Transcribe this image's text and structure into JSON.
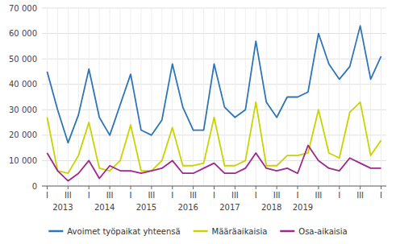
{
  "chart_data": {
    "type": "line",
    "categories": [
      "I",
      null,
      "III",
      null,
      "I",
      null,
      "III",
      null,
      "I",
      null,
      "III",
      null,
      "I",
      null,
      "III",
      null,
      "I",
      null,
      "III",
      null,
      "I",
      null,
      "III",
      null,
      "I",
      null,
      "III",
      null,
      "I",
      null,
      "III",
      null,
      "I"
    ],
    "series": [
      {
        "name": "Avoimet työpaikat yhteensä",
        "color": "#2e75b6",
        "values": [
          45000,
          30000,
          17000,
          28000,
          46000,
          27000,
          20000,
          32000,
          44000,
          22000,
          20000,
          26000,
          48000,
          31000,
          22000,
          22000,
          48000,
          31000,
          27000,
          30000,
          57000,
          33000,
          27000,
          35000,
          35000,
          37000,
          60000,
          48000,
          42000,
          47000,
          63000,
          42000,
          51000
        ]
      },
      {
        "name": "Määräaikaisia",
        "color": "#c8d400",
        "values": [
          27000,
          6000,
          5000,
          12000,
          25000,
          7000,
          6000,
          10000,
          24000,
          6000,
          6000,
          10000,
          23000,
          8000,
          8000,
          9000,
          27000,
          8000,
          8000,
          10000,
          33000,
          8000,
          8000,
          12000,
          12000,
          13000,
          30000,
          13000,
          11000,
          29000,
          33000,
          12000,
          18000
        ]
      },
      {
        "name": "Osa-aikaisia",
        "color": "#9e288e",
        "values": [
          13000,
          6000,
          2000,
          5000,
          10000,
          3000,
          8000,
          6000,
          6000,
          5000,
          6000,
          7000,
          10000,
          5000,
          5000,
          7000,
          9000,
          5000,
          5000,
          7000,
          13000,
          7000,
          6000,
          7000,
          5000,
          16000,
          10000,
          7000,
          6000,
          11000,
          9000,
          7000,
          7000
        ]
      }
    ],
    "ylim": [
      0,
      70000
    ],
    "yticks": [
      0,
      {
        "value": 10000,
        "label": "10 000"
      },
      {
        "value": 20000,
        "label": "20 000"
      },
      {
        "value": 30000,
        "label": "30 000"
      },
      {
        "value": 40000,
        "label": "40 000"
      },
      {
        "value": 50000,
        "label": "50 000"
      },
      {
        "value": 60000,
        "label": "60 000"
      },
      {
        "value": 70000,
        "label": "70 000"
      }
    ],
    "annotations": [
      {
        "text": "2013",
        "x": 1.5
      },
      {
        "text": "2014",
        "x": 5.5
      },
      {
        "text": "2015",
        "x": 9.5
      },
      {
        "text": "2016",
        "x": 13.5
      },
      {
        "text": "2017",
        "x": 17.5
      },
      {
        "text": "2018",
        "x": 21.5
      },
      {
        "text": "2019",
        "x": 24.5
      }
    ],
    "grid": true,
    "legend": "bottom"
  }
}
